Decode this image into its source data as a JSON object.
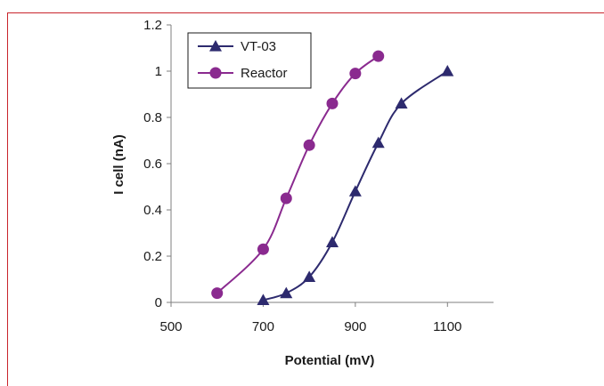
{
  "chart_data": {
    "type": "line",
    "title": "",
    "xlabel": "Potential (mV)",
    "ylabel": "I cell (nA)",
    "xlim": [
      500,
      1200
    ],
    "ylim": [
      0,
      1.2
    ],
    "xticks": [
      500,
      700,
      900,
      1100
    ],
    "yticks": [
      0,
      0.2,
      0.4,
      0.6,
      0.8,
      1,
      1.2
    ],
    "grid": false,
    "legend_position": "top-left",
    "series": [
      {
        "name": "VT-03",
        "marker": "triangle",
        "color": "#2d2a6e",
        "x": [
          700,
          750,
          800,
          850,
          900,
          950,
          1000,
          1100
        ],
        "y": [
          0.01,
          0.04,
          0.11,
          0.26,
          0.48,
          0.69,
          0.86,
          1.0
        ]
      },
      {
        "name": "Reactor",
        "marker": "circle",
        "color": "#8a2a8f",
        "x": [
          600,
          700,
          750,
          800,
          850,
          900,
          950
        ],
        "y": [
          0.04,
          0.23,
          0.45,
          0.68,
          0.86,
          0.99,
          1.065
        ]
      }
    ]
  },
  "colors": {
    "frame": "#c9252c",
    "axis": "#7f7f7f"
  }
}
